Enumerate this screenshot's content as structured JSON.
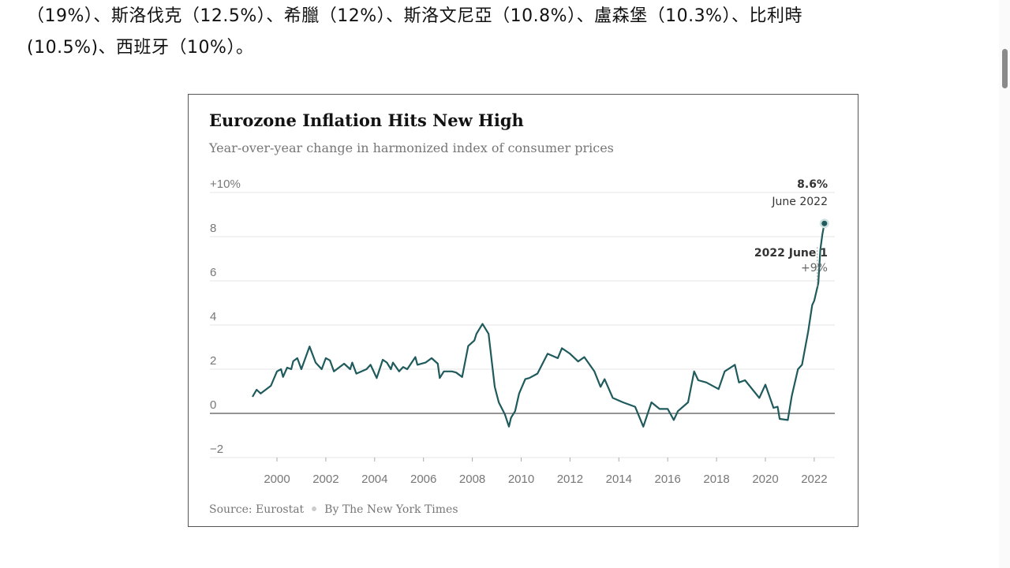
{
  "article": {
    "line1": "（19%）、斯洛伐克（12.5%）、希臘（12%）、斯洛文尼亞（10.8%）、盧森堡（10.3%）、比利時",
    "line2": "(10.5%)、西班牙（10%）。"
  },
  "chart_data": {
    "type": "line",
    "title": "Eurozone Inflation Hits New High",
    "subtitle": "Year-over-year change in harmonized index of consumer prices",
    "source": "Source: Eurostat",
    "byline": "By The New York Times",
    "ylim": [
      -2,
      10
    ],
    "yticks": [
      {
        "v": 10,
        "label": "+10%"
      },
      {
        "v": 8,
        "label": "8"
      },
      {
        "v": 6,
        "label": "6"
      },
      {
        "v": 4,
        "label": "4"
      },
      {
        "v": 2,
        "label": "2"
      },
      {
        "v": 0,
        "label": "0"
      },
      {
        "v": -2,
        "label": "−2"
      }
    ],
    "xticks": [
      "2000",
      "2002",
      "2004",
      "2006",
      "2008",
      "2010",
      "2012",
      "2014",
      "2016",
      "2018",
      "2020",
      "2022"
    ],
    "grid": true,
    "line_color": "#1f5a5c",
    "annotation": {
      "value": "8.6%",
      "label": "June 2022"
    },
    "tooltip": {
      "label": "2022 June 1",
      "value": "+9%"
    },
    "series": [
      [
        "1999-01",
        0.75
      ],
      [
        "1999-03",
        1.07
      ],
      [
        "1999-05",
        0.9
      ],
      [
        "1999-10",
        1.25
      ],
      [
        "2000-01",
        1.9
      ],
      [
        "2000-03",
        2.0
      ],
      [
        "2000-04",
        1.65
      ],
      [
        "2000-06",
        2.07
      ],
      [
        "2000-08",
        2.0
      ],
      [
        "2000-09",
        2.36
      ],
      [
        "2000-11",
        2.5
      ],
      [
        "2001-01",
        2.0
      ],
      [
        "2001-05",
        3.03
      ],
      [
        "2001-08",
        2.3
      ],
      [
        "2001-11",
        2.0
      ],
      [
        "2002-01",
        2.5
      ],
      [
        "2002-03",
        2.4
      ],
      [
        "2002-05",
        1.9
      ],
      [
        "2002-10",
        2.25
      ],
      [
        "2003-01",
        2.0
      ],
      [
        "2003-02",
        2.3
      ],
      [
        "2003-04",
        1.8
      ],
      [
        "2003-09",
        2.0
      ],
      [
        "2003-11",
        2.2
      ],
      [
        "2004-02",
        1.6
      ],
      [
        "2004-05",
        2.43
      ],
      [
        "2004-07",
        2.3
      ],
      [
        "2004-09",
        2.0
      ],
      [
        "2004-10",
        2.3
      ],
      [
        "2005-01",
        1.9
      ],
      [
        "2005-03",
        2.1
      ],
      [
        "2005-05",
        2.0
      ],
      [
        "2005-09",
        2.55
      ],
      [
        "2005-10",
        2.2
      ],
      [
        "2006-02",
        2.3
      ],
      [
        "2006-05",
        2.5
      ],
      [
        "2006-08",
        2.25
      ],
      [
        "2006-09",
        1.6
      ],
      [
        "2006-11",
        1.9
      ],
      [
        "2007-03",
        1.9
      ],
      [
        "2007-05",
        1.85
      ],
      [
        "2007-08",
        1.65
      ],
      [
        "2007-11",
        3.05
      ],
      [
        "2008-02",
        3.3
      ],
      [
        "2008-03",
        3.6
      ],
      [
        "2008-06",
        4.05
      ],
      [
        "2008-09",
        3.6
      ],
      [
        "2008-12",
        1.2
      ],
      [
        "2009-02",
        0.5
      ],
      [
        "2009-05",
        -0.05
      ],
      [
        "2009-07",
        -0.6
      ],
      [
        "2009-08",
        -0.2
      ],
      [
        "2009-10",
        0.1
      ],
      [
        "2009-12",
        0.9
      ],
      [
        "2010-03",
        1.55
      ],
      [
        "2010-05",
        1.6
      ],
      [
        "2010-09",
        1.8
      ],
      [
        "2011-02",
        2.7
      ],
      [
        "2011-07",
        2.5
      ],
      [
        "2011-09",
        2.95
      ],
      [
        "2012-01",
        2.7
      ],
      [
        "2012-05",
        2.35
      ],
      [
        "2012-08",
        2.55
      ],
      [
        "2013-01",
        1.9
      ],
      [
        "2013-04",
        1.2
      ],
      [
        "2013-06",
        1.55
      ],
      [
        "2013-10",
        0.7
      ],
      [
        "2014-03",
        0.5
      ],
      [
        "2014-09",
        0.3
      ],
      [
        "2015-01",
        -0.6
      ],
      [
        "2015-05",
        0.5
      ],
      [
        "2015-09",
        0.2
      ],
      [
        "2016-01",
        0.2
      ],
      [
        "2016-04",
        -0.3
      ],
      [
        "2016-06",
        0.1
      ],
      [
        "2016-11",
        0.5
      ],
      [
        "2017-02",
        1.9
      ],
      [
        "2017-04",
        1.5
      ],
      [
        "2017-08",
        1.4
      ],
      [
        "2018-02",
        1.1
      ],
      [
        "2018-05",
        1.9
      ],
      [
        "2018-10",
        2.2
      ],
      [
        "2018-12",
        1.4
      ],
      [
        "2019-03",
        1.5
      ],
      [
        "2019-10",
        0.7
      ],
      [
        "2020-01",
        1.3
      ],
      [
        "2020-05",
        0.25
      ],
      [
        "2020-07",
        0.3
      ],
      [
        "2020-08",
        -0.25
      ],
      [
        "2020-12",
        -0.3
      ],
      [
        "2021-02",
        0.8
      ],
      [
        "2021-05",
        2.0
      ],
      [
        "2021-07",
        2.2
      ],
      [
        "2021-10",
        3.7
      ],
      [
        "2021-12",
        4.9
      ],
      [
        "2022-01",
        5.1
      ],
      [
        "2022-03",
        5.9
      ],
      [
        "2022-04",
        7.4
      ],
      [
        "2022-05",
        8.1
      ],
      [
        "2022-06",
        8.6
      ]
    ]
  }
}
